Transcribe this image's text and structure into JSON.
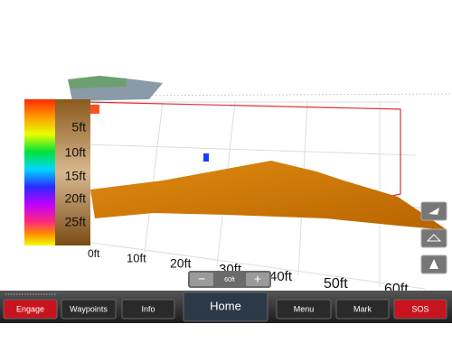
{
  "depth_scale": {
    "labels": [
      "5ft",
      "10ft",
      "15ft",
      "20ft",
      "25ft"
    ]
  },
  "distance_labels": [
    "0ft",
    "10ft",
    "20ft",
    "30ft",
    "40ft",
    "50ft",
    "60ft"
  ],
  "zoom": {
    "minus": "−",
    "range": "60ft",
    "plus": "+"
  },
  "bottom_bar": {
    "buttons": [
      "Engage",
      "Waypoints",
      "Info",
      "Home",
      "Menu",
      "Mark",
      "SOS"
    ]
  }
}
